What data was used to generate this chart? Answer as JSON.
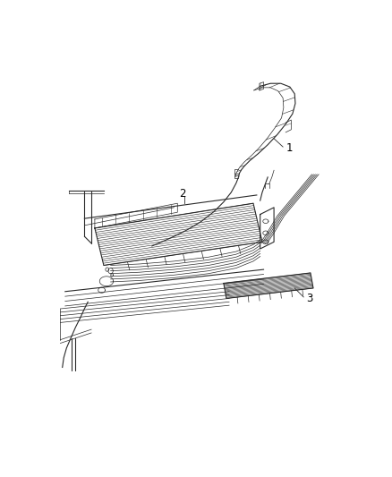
{
  "background_color": "#ffffff",
  "line_color": "#2a2a2a",
  "label_color": "#000000",
  "fig_width": 4.38,
  "fig_height": 5.33,
  "dpi": 100
}
